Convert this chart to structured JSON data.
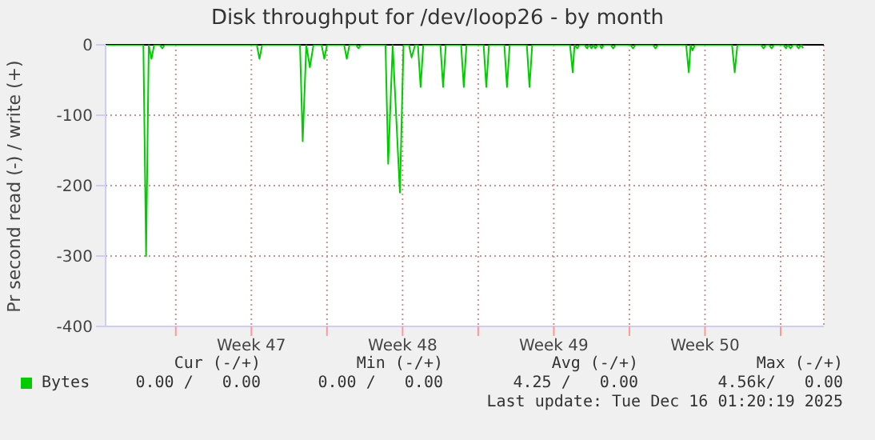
{
  "chart_data": {
    "type": "line",
    "title": "Disk throughput for /dev/loop26 - by month",
    "ylabel": "Pr second read (-) / write (+)",
    "x": [
      "2025-11-13T18:00",
      "2025-11-15T12:00",
      "2025-11-15T15:00",
      "2025-11-15T18:00",
      "2025-11-15T21:00",
      "2025-11-16T00:00",
      "2025-11-16T06:00",
      "2025-11-16T09:00",
      "2025-11-16T12:00",
      "2025-11-20T18:00",
      "2025-11-20T21:00",
      "2025-11-21T00:00",
      "2025-11-22T18:00",
      "2025-11-22T21:00",
      "2025-11-23T01:00",
      "2025-11-23T05:00",
      "2025-11-23T09:00",
      "2025-11-23T18:00",
      "2025-11-23T21:00",
      "2025-11-24T00:00",
      "2025-11-24T19:00",
      "2025-11-24T22:00",
      "2025-11-25T01:00",
      "2025-11-25T08:00",
      "2025-11-25T11:00",
      "2025-11-25T14:00",
      "2025-11-26T17:00",
      "2025-11-26T20:00",
      "2025-11-27T01:00",
      "2025-11-27T09:00",
      "2025-11-27T13:00",
      "2025-11-27T19:00",
      "2025-11-27T22:00",
      "2025-11-28T02:00",
      "2025-11-28T05:00",
      "2025-11-28T08:00",
      "2025-11-28T11:00",
      "2025-11-29T06:00",
      "2025-11-29T09:00",
      "2025-11-29T12:00",
      "2025-11-30T05:00",
      "2025-11-30T08:00",
      "2025-11-30T11:00",
      "2025-12-01T06:00",
      "2025-12-01T09:00",
      "2025-12-01T12:00",
      "2025-12-02T05:00",
      "2025-12-02T08:00",
      "2025-12-02T11:00",
      "2025-12-03T06:00",
      "2025-12-03T09:00",
      "2025-12-03T12:00",
      "2025-12-05T06:00",
      "2025-12-05T09:00",
      "2025-12-05T11:00",
      "2025-12-05T14:00",
      "2025-12-05T17:00",
      "2025-12-05T22:00",
      "2025-12-06T01:00",
      "2025-12-06T03:00",
      "2025-12-06T06:00",
      "2025-12-06T08:00",
      "2025-12-06T10:00",
      "2025-12-06T13:00",
      "2025-12-06T15:00",
      "2025-12-06T17:00",
      "2025-12-06T20:00",
      "2025-12-07T03:00",
      "2025-12-07T06:00",
      "2025-12-07T09:00",
      "2025-12-08T01:00",
      "2025-12-08T04:00",
      "2025-12-08T07:00",
      "2025-12-09T02:00",
      "2025-12-09T05:00",
      "2025-12-09T08:00",
      "2025-12-10T15:00",
      "2025-12-10T18:00",
      "2025-12-10T20:00",
      "2025-12-10T22:00",
      "2025-12-11T01:00",
      "2025-12-12T18:00",
      "2025-12-12T21:00",
      "2025-12-13T00:00",
      "2025-12-14T02:00",
      "2025-12-14T05:00",
      "2025-12-14T08:00",
      "2025-12-14T11:00",
      "2025-12-14T14:00",
      "2025-12-14T17:00",
      "2025-12-15T03:00",
      "2025-12-15T06:00",
      "2025-12-15T08:00",
      "2025-12-15T11:00",
      "2025-12-15T14:00",
      "2025-12-15T17:00",
      "2025-12-15T20:00",
      "2025-12-15T23:00",
      "2025-12-16T01:00"
    ],
    "series": [
      {
        "name": "Bytes",
        "color": "#00cc00",
        "values": [
          0,
          0,
          -300,
          0,
          -20,
          0,
          0,
          -5,
          0,
          0,
          -20,
          0,
          0,
          -137,
          0,
          -32,
          0,
          0,
          -20,
          0,
          0,
          -20,
          0,
          0,
          -5,
          0,
          0,
          -169,
          0,
          -210,
          0,
          0,
          -18,
          0,
          0,
          -60,
          0,
          0,
          -60,
          0,
          0,
          -60,
          0,
          0,
          -60,
          0,
          0,
          -60,
          0,
          0,
          -60,
          0,
          0,
          -39,
          0,
          -5,
          0,
          0,
          -5,
          0,
          -5,
          0,
          -5,
          0,
          0,
          -5,
          0,
          0,
          -5,
          0,
          0,
          -5,
          0,
          0,
          -5,
          0,
          0,
          -39,
          0,
          -8,
          0,
          0,
          -39,
          0,
          0,
          -5,
          0,
          0,
          -5,
          0,
          0,
          -5,
          0,
          -5,
          0,
          0,
          -5,
          0,
          -5
        ]
      }
    ],
    "xlim": [
      "2025-11-13T18:00",
      "2025-12-17T00:00"
    ],
    "xticks": [
      {
        "value": "2025-11-17T00:00",
        "label": null
      },
      {
        "value": "2025-11-20T12:00",
        "label": "Week 47"
      },
      {
        "value": "2025-11-24T00:00",
        "label": null
      },
      {
        "value": "2025-11-27T12:00",
        "label": "Week 48"
      },
      {
        "value": "2025-12-01T00:00",
        "label": null
      },
      {
        "value": "2025-12-04T12:00",
        "label": "Week 49"
      },
      {
        "value": "2025-12-08T00:00",
        "label": null
      },
      {
        "value": "2025-12-11T12:00",
        "label": "Week 50"
      },
      {
        "value": "2025-12-15T00:00",
        "label": null
      }
    ],
    "ylim": [
      -400,
      0
    ],
    "yticks": [
      -400,
      -300,
      -200,
      -100,
      0
    ],
    "ref_lines": [
      {
        "axis": "y",
        "value": 0,
        "color": "#000000"
      }
    ],
    "grid": true,
    "legend": "bottom",
    "marker": "none",
    "line_style": "solid",
    "annotations": [
      "Cur (-/+)",
      "Min (-/+)",
      "Avg (-/+)",
      "Max (-/+)",
      "0.00 /   0.00",
      "0.00 /   0.00",
      "4.25 /   0.00",
      "4.56k/   0.00",
      "Last update: Tue Dec 16 01:20:19 2025"
    ]
  }
}
